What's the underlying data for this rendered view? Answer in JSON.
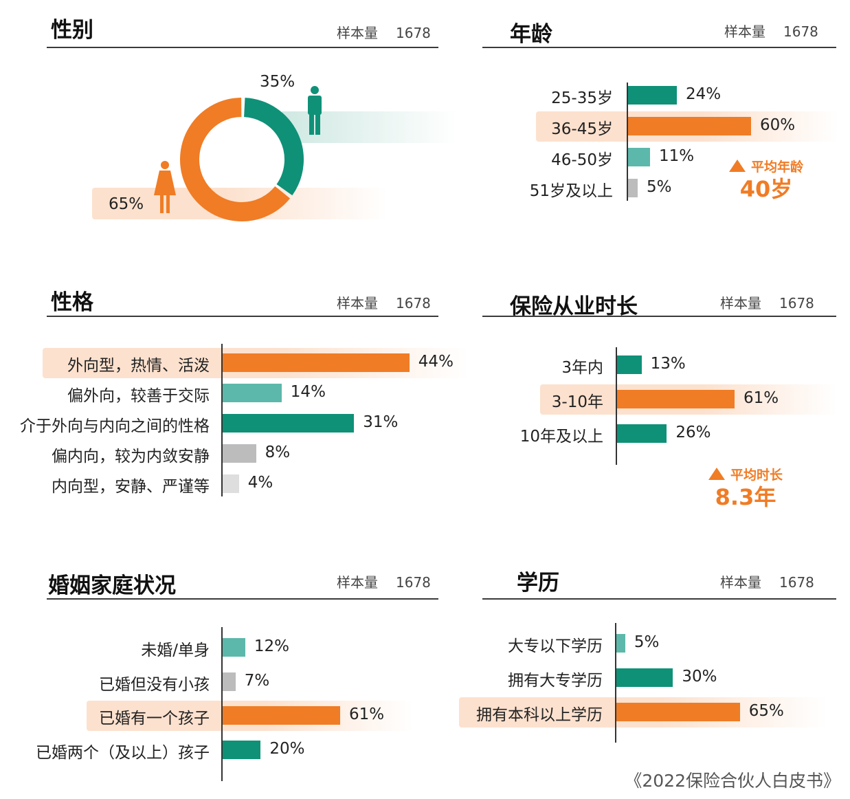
{
  "colors": {
    "orange": "#f07c25",
    "teal": "#0f9178",
    "teal_light": "#5cb8aa",
    "gray": "#bcbcbc",
    "gray_light": "#dedede"
  },
  "gender": {
    "title": "性别",
    "sample_label": "样本量",
    "sample_n": "1678",
    "male_pct": "35%",
    "female_pct": "65%",
    "male_icon": "male-person-icon",
    "female_icon": "female-person-icon"
  },
  "age": {
    "title": "年龄",
    "sample_label": "样本量",
    "sample_n": "1678",
    "avg_label": "平均年龄",
    "avg_value": "40岁"
  },
  "personality": {
    "title": "性格",
    "sample_label": "样本量",
    "sample_n": "1678"
  },
  "tenure": {
    "title": "保险从业时长",
    "sample_label": "样本量",
    "sample_n": "1678",
    "avg_label": "平均时长",
    "avg_value": "8.3年"
  },
  "marital": {
    "title": "婚姻家庭状况",
    "sample_label": "样本量",
    "sample_n": "1678"
  },
  "education": {
    "title": "学历",
    "sample_label": "样本量",
    "sample_n": "1678"
  },
  "footer": "《2022保险合伙人白皮书》",
  "chart_data": [
    {
      "id": "gender",
      "type": "pie",
      "title": "性别",
      "categories": [
        "男",
        "女"
      ],
      "values": [
        35,
        65
      ],
      "colors": [
        "teal",
        "orange"
      ]
    },
    {
      "id": "age",
      "type": "bar",
      "orientation": "horizontal",
      "title": "年龄",
      "categories": [
        "25-35岁",
        "36-45岁",
        "46-50岁",
        "51岁及以上"
      ],
      "values": [
        24,
        60,
        11,
        5
      ],
      "labels": [
        "24%",
        "60%",
        "11%",
        "5%"
      ],
      "colors": [
        "teal",
        "orange",
        "teal_light",
        "gray"
      ],
      "highlight": 1
    },
    {
      "id": "personality",
      "type": "bar",
      "orientation": "horizontal",
      "title": "性格",
      "categories": [
        "外向型，热情、活泼",
        "偏外向，较善于交际",
        "介于外向与内向之间的性格",
        "偏内向，较为内敛安静",
        "内向型，安静、严谨等"
      ],
      "values": [
        44,
        14,
        31,
        8,
        4
      ],
      "labels": [
        "44%",
        "14%",
        "31%",
        "8%",
        "4%"
      ],
      "colors": [
        "orange",
        "teal_light",
        "teal",
        "gray",
        "gray_light"
      ],
      "highlight": 0
    },
    {
      "id": "tenure",
      "type": "bar",
      "orientation": "horizontal",
      "title": "保险从业时长",
      "categories": [
        "3年内",
        "3-10年",
        "10年及以上"
      ],
      "values": [
        13,
        61,
        26
      ],
      "labels": [
        "13%",
        "61%",
        "26%"
      ],
      "colors": [
        "teal",
        "orange",
        "teal"
      ],
      "highlight": 1
    },
    {
      "id": "marital",
      "type": "bar",
      "orientation": "horizontal",
      "title": "婚姻家庭状况",
      "categories": [
        "未婚/单身",
        "已婚但没有小孩",
        "已婚有一个孩子",
        "已婚两个（及以上）孩子"
      ],
      "values": [
        12,
        7,
        61,
        20
      ],
      "labels": [
        "12%",
        "7%",
        "61%",
        "20%"
      ],
      "colors": [
        "teal_light",
        "gray",
        "orange",
        "teal"
      ],
      "highlight": 2
    },
    {
      "id": "education",
      "type": "bar",
      "orientation": "horizontal",
      "title": "学历",
      "categories": [
        "大专以下学历",
        "拥有大专学历",
        "拥有本科以上学历"
      ],
      "values": [
        5,
        30,
        65
      ],
      "labels": [
        "5%",
        "30%",
        "65%"
      ],
      "colors": [
        "teal_light",
        "teal",
        "orange"
      ],
      "highlight": 2
    }
  ]
}
